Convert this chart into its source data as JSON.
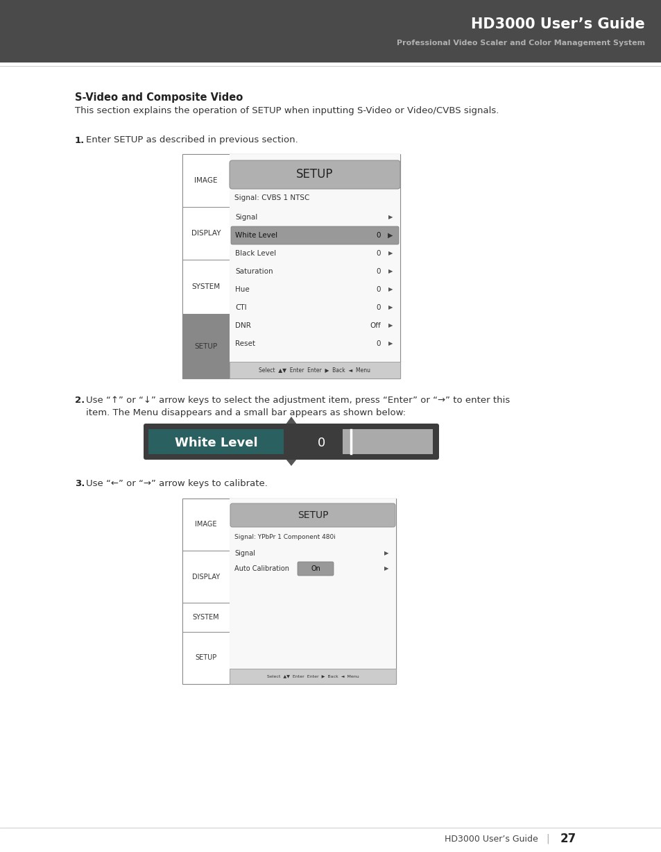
{
  "header_bg": "#4a4a4a",
  "header_title": "HD3000 User’s Guide",
  "header_subtitle": "Professional Video Scaler and Color Management System",
  "page_bg": "#ffffff",
  "section_title": "S-Video and Composite Video",
  "section_desc": "This section explains the operation of SETUP when inputting S-Video or Video/CVBS signals.",
  "step1_label": "1.",
  "step1_text": "Enter SETUP as described in previous section.",
  "step2_label": "2.",
  "step2_line1": "Use “↑” or “↓” arrow keys to select the adjustment item, press “Enter” or “→” to enter this",
  "step2_line2": "item. The Menu disappears and a small bar appears as shown below:",
  "step3_label": "3.",
  "step3_text": "Use “←” or “→” arrow keys to calibrate.",
  "footer_text": "HD3000 User’s Guide",
  "footer_page": "27",
  "menu1_signal_info": "Signal: CVBS 1 NTSC",
  "menu1_items": [
    "Signal",
    "White Level",
    "Black Level",
    "Saturation",
    "Hue",
    "CTI",
    "DNR",
    "Reset"
  ],
  "menu1_values": [
    "",
    "0",
    "0",
    "0",
    "0",
    "0",
    "Off",
    "0"
  ],
  "menu1_highlighted": 1,
  "menu1_sidebar": [
    "IMAGE",
    "DISPLAY",
    "SYSTEM",
    "SETUP"
  ],
  "menu2_signal_info": "Signal: YPbPr 1 Component 480i",
  "menu2_items": [
    "Signal",
    "Auto Calibration"
  ],
  "menu2_values": [
    "",
    "On"
  ],
  "menu2_sidebar": [
    "IMAGE",
    "DISPLAY",
    "SYSTEM",
    "SETUP"
  ],
  "wl_bar_bg": "#3a3a3a",
  "wl_label_bg": "#2a6060",
  "wl_slider_bg": "#888888",
  "menu_panel_bg": "#f0f0f0",
  "menu_header_bg": "#aaaaaa",
  "menu_highlight_bg": "#888888",
  "menu_bottom_bg": "#cccccc",
  "sidebar_setup_bg": "#888888"
}
